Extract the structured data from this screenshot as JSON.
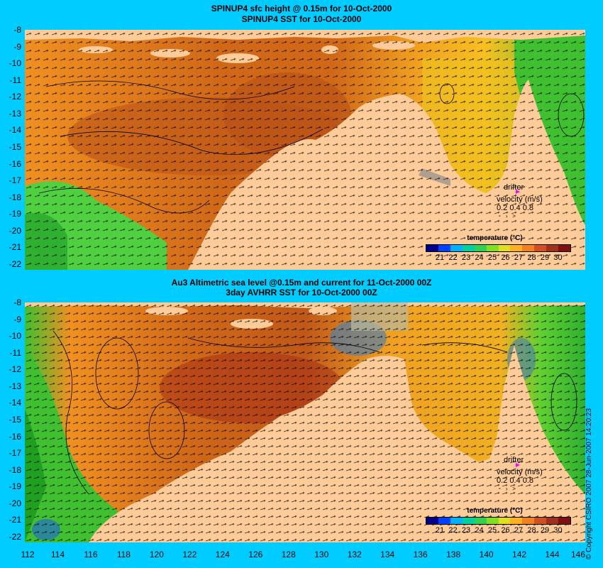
{
  "top_panel": {
    "title_line1": "SPINUP4 sfc height @ 0.15m for 10-Oct-2000",
    "title_line2": "SPINUP4 SST for 10-Oct-2000"
  },
  "bottom_panel": {
    "title_line1": "Au3 Altimetric sea level  @0.15m and current for 11-Oct-2000 00Z",
    "title_line2": "3day AVHRR SST for 10-Oct-2000 00Z"
  },
  "y_axis_labels": [
    "-8",
    "-9",
    "-10",
    "-11",
    "-12",
    "-13",
    "-14",
    "-15",
    "-16",
    "-17",
    "-18",
    "-19",
    "-20",
    "-21",
    "-22"
  ],
  "x_axis_labels": [
    "112",
    "114",
    "116",
    "118",
    "120",
    "122",
    "124",
    "126",
    "128",
    "130",
    "132",
    "134",
    "136",
    "138",
    "140",
    "142",
    "144",
    "146"
  ],
  "legend": {
    "title": "temperature (°C)",
    "ticks": [
      "21",
      "22",
      "23",
      "24",
      "25",
      "26",
      "27",
      "28",
      "29",
      "30"
    ],
    "colors": [
      "#00008b",
      "#0040ff",
      "#00b0ff",
      "#00d0a0",
      "#30d050",
      "#80e020",
      "#e0e020",
      "#ffb020",
      "#f08020",
      "#d05020",
      "#a03018",
      "#801010"
    ]
  },
  "drifter": {
    "label": "drifter",
    "velocity_label": "velocity (m/s)",
    "scale_values": "0.2 0.4 0.8"
  },
  "copyright": "© Copyright CSIRO 2007  28-Jun-2007 14:20:23",
  "colors": {
    "background": "#00ccff",
    "land": "#ffcc99",
    "drifter_marker": "#ff00ff"
  }
}
